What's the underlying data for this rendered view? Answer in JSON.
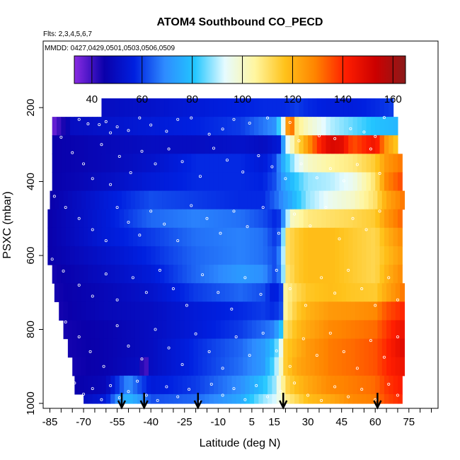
{
  "chart_data": {
    "type": "heatmap",
    "title": "ATOM4 Southbound CO_PECD",
    "flights_note": "Flts: 2,3,4,5,6,7",
    "dates_note": "MMDD: 0427,0429,0501,0503,0506,0509",
    "xlabel": "Latitude (deg N)",
    "ylabel": "PSXC (mbar)",
    "xlim": [
      -88,
      88
    ],
    "ylim": [
      1000,
      20
    ],
    "y_reversed": true,
    "x_ticks": [
      -85,
      -70,
      -55,
      -40,
      -25,
      -10,
      5,
      15,
      30,
      45,
      60,
      75
    ],
    "x_tick_labels": [
      "-85",
      "-70",
      "-55",
      "-40",
      "-25",
      "-10",
      "5",
      "15",
      "30",
      "45",
      "60",
      "75"
    ],
    "x_minor_step": 5,
    "y_ticks": [
      200,
      400,
      600,
      800,
      1000
    ],
    "y_tick_labels": [
      "200",
      "400",
      "600",
      "800",
      "1000"
    ],
    "colorbar": {
      "min": 33,
      "max": 165,
      "ticks": [
        40,
        60,
        80,
        100,
        120,
        140,
        160
      ],
      "tick_labels": [
        "40",
        "60",
        "80",
        "100",
        "120",
        "140",
        "160"
      ],
      "lines": [
        40,
        60,
        80,
        100,
        120,
        140,
        160
      ],
      "colors": [
        "#8a2be2",
        "#0a00aa",
        "#0020e0",
        "#2e8bff",
        "#22c6ff",
        "#e6fbff",
        "#fff6a0",
        "#ffc21a",
        "#ff8400",
        "#ff1e00",
        "#cc0000",
        "#8b1a1a"
      ]
    },
    "arrows_latitude": [
      -53,
      -43,
      -19,
      19,
      61
    ],
    "levels": [
      {
        "p": 200,
        "xmin": -62,
        "xmax": 67,
        "lat": [
          -60,
          -40,
          -20,
          0,
          10,
          20,
          25,
          30,
          40,
          50,
          60,
          67
        ],
        "co": [
          50,
          52,
          55,
          57,
          58,
          58,
          60,
          58,
          56,
          56,
          58,
          60
        ]
      },
      {
        "p": 250,
        "xmin": -84,
        "xmax": 70,
        "lat": [
          -84,
          -80,
          -75,
          -60,
          -40,
          -20,
          0,
          15,
          20,
          22,
          24,
          30,
          40,
          50,
          60,
          70
        ],
        "co": [
          35,
          42,
          50,
          52,
          55,
          57,
          60,
          70,
          100,
          150,
          110,
          100,
          90,
          85,
          80,
          78
        ]
      },
      {
        "p": 300,
        "xmin": -84,
        "xmax": 70,
        "lat": [
          -84,
          -60,
          -40,
          -20,
          0,
          10,
          18,
          20,
          25,
          30,
          35,
          40,
          45,
          50,
          55,
          60,
          65,
          70
        ],
        "co": [
          45,
          48,
          50,
          50,
          52,
          50,
          55,
          90,
          110,
          125,
          140,
          150,
          148,
          135,
          140,
          145,
          125,
          115
        ]
      },
      {
        "p": 350,
        "xmin": -84,
        "xmax": 71,
        "lat": [
          -84,
          -60,
          -40,
          -20,
          0,
          10,
          15,
          20,
          25,
          30,
          40,
          50,
          60,
          65,
          71
        ],
        "co": [
          45,
          48,
          52,
          58,
          58,
          55,
          60,
          80,
          92,
          100,
          105,
          108,
          115,
          125,
          130
        ]
      },
      {
        "p": 400,
        "xmin": -84,
        "xmax": 71,
        "lat": [
          -84,
          -60,
          -40,
          -20,
          0,
          10,
          15,
          20,
          25,
          30,
          40,
          50,
          60,
          65,
          71
        ],
        "co": [
          45,
          50,
          55,
          58,
          58,
          57,
          62,
          75,
          82,
          88,
          90,
          95,
          110,
          128,
          135
        ]
      },
      {
        "p": 450,
        "xmin": -85,
        "xmax": 72,
        "lat": [
          -85,
          -60,
          -40,
          -20,
          0,
          10,
          15,
          20,
          25,
          30,
          40,
          50,
          60,
          65,
          72
        ],
        "co": [
          45,
          55,
          62,
          60,
          58,
          58,
          64,
          72,
          80,
          88,
          95,
          100,
          110,
          122,
          130
        ]
      },
      {
        "p": 500,
        "xmin": -86,
        "xmax": 72,
        "lat": [
          -86,
          -60,
          -40,
          -20,
          0,
          10,
          15,
          18,
          22,
          30,
          40,
          50,
          60,
          65,
          72
        ],
        "co": [
          45,
          55,
          65,
          68,
          66,
          62,
          58,
          60,
          100,
          108,
          110,
          112,
          115,
          125,
          133
        ]
      },
      {
        "p": 550,
        "xmin": -86,
        "xmax": 72,
        "lat": [
          -86,
          -60,
          -40,
          -20,
          0,
          10,
          15,
          18,
          20,
          25,
          30,
          40,
          50,
          60,
          65,
          72
        ],
        "co": [
          45,
          55,
          60,
          66,
          68,
          66,
          60,
          64,
          110,
          115,
          118,
          118,
          115,
          112,
          120,
          128
        ]
      },
      {
        "p": 600,
        "xmin": -86,
        "xmax": 72,
        "lat": [
          -86,
          -60,
          -40,
          -20,
          0,
          10,
          15,
          18,
          20,
          25,
          30,
          40,
          50,
          60,
          65,
          72
        ],
        "co": [
          45,
          52,
          58,
          65,
          68,
          66,
          62,
          70,
          110,
          115,
          118,
          118,
          115,
          112,
          118,
          125
        ]
      },
      {
        "p": 650,
        "xmin": -84,
        "xmax": 72,
        "lat": [
          -84,
          -60,
          -40,
          -20,
          0,
          10,
          15,
          18,
          20,
          25,
          30,
          40,
          50,
          60,
          65,
          72
        ],
        "co": [
          44,
          50,
          55,
          65,
          72,
          70,
          62,
          68,
          108,
          115,
          118,
          118,
          115,
          112,
          120,
          128
        ]
      },
      {
        "p": 700,
        "xmin": -83,
        "xmax": 72,
        "lat": [
          -83,
          -60,
          -40,
          -20,
          0,
          10,
          15,
          18,
          20,
          25,
          30,
          40,
          50,
          60,
          65,
          72
        ],
        "co": [
          44,
          48,
          52,
          60,
          65,
          62,
          55,
          60,
          105,
          112,
          116,
          118,
          116,
          115,
          122,
          130
        ]
      },
      {
        "p": 750,
        "xmin": -81,
        "xmax": 72,
        "lat": [
          -81,
          -60,
          -40,
          -20,
          0,
          10,
          15,
          18,
          20,
          25,
          30,
          40,
          50,
          60,
          65,
          72
        ],
        "co": [
          44,
          48,
          50,
          55,
          58,
          60,
          58,
          62,
          105,
          115,
          120,
          125,
          126,
          128,
          135,
          140
        ]
      },
      {
        "p": 800,
        "xmin": -79,
        "xmax": 72,
        "lat": [
          -79,
          -60,
          -40,
          -20,
          0,
          10,
          15,
          18,
          20,
          25,
          30,
          40,
          50,
          60,
          65,
          72
        ],
        "co": [
          44,
          46,
          50,
          55,
          60,
          65,
          68,
          80,
          110,
          118,
          122,
          128,
          130,
          132,
          138,
          145
        ]
      },
      {
        "p": 850,
        "xmin": -77,
        "xmax": 72,
        "lat": [
          -77,
          -60,
          -40,
          -20,
          0,
          10,
          15,
          18,
          20,
          25,
          30,
          40,
          50,
          60,
          65,
          72
        ],
        "co": [
          44,
          46,
          50,
          58,
          65,
          72,
          80,
          95,
          115,
          120,
          125,
          130,
          132,
          135,
          140,
          148
        ]
      },
      {
        "p": 900,
        "xmin": -75,
        "xmax": 72,
        "lat": [
          -75,
          -60,
          -45,
          -43,
          -40,
          -20,
          0,
          10,
          15,
          18,
          20,
          25,
          30,
          40,
          50,
          60,
          65,
          72
        ],
        "co": [
          44,
          46,
          50,
          35,
          50,
          58,
          66,
          72,
          85,
          100,
          115,
          122,
          125,
          130,
          132,
          135,
          140,
          145
        ]
      },
      {
        "p": 950,
        "xmin": -74,
        "xmax": 72,
        "lat": [
          -74,
          -60,
          -50,
          -45,
          -40,
          -20,
          0,
          10,
          15,
          18,
          20,
          25,
          30,
          40,
          50,
          60,
          65,
          72
        ],
        "co": [
          45,
          48,
          70,
          62,
          55,
          60,
          70,
          80,
          88,
          100,
          112,
          118,
          122,
          128,
          130,
          132,
          138,
          142
        ]
      },
      {
        "p": 1000,
        "xmin": -70,
        "xmax": 72,
        "lat": [
          -70,
          -60,
          -55,
          -50,
          -45,
          -40,
          -20,
          0,
          10,
          15,
          18,
          20,
          25,
          30,
          40,
          50,
          60,
          65,
          72
        ],
        "co": [
          50,
          55,
          70,
          78,
          72,
          62,
          65,
          75,
          88,
          92,
          98,
          106,
          112,
          118,
          122,
          128,
          130,
          136,
          140
        ]
      }
    ],
    "points": [
      [
        -77,
        220
      ],
      [
        -72,
        232
      ],
      [
        -68,
        244
      ],
      [
        -63,
        246
      ],
      [
        -60,
        238
      ],
      [
        -58,
        268
      ],
      [
        -55,
        252
      ],
      [
        -50,
        262
      ],
      [
        -45,
        228
      ],
      [
        -40,
        247
      ],
      [
        -33,
        264
      ],
      [
        -28,
        232
      ],
      [
        -22,
        228
      ],
      [
        -14,
        272
      ],
      [
        -8,
        258
      ],
      [
        -3,
        232
      ],
      [
        4,
        242
      ],
      [
        12,
        228
      ],
      [
        22,
        240
      ],
      [
        26,
        290
      ],
      [
        35,
        276
      ],
      [
        42,
        284
      ],
      [
        49,
        257
      ],
      [
        55,
        266
      ],
      [
        60,
        278
      ],
      [
        64,
        227
      ],
      [
        -80,
        280
      ],
      [
        -75,
        322
      ],
      [
        -70,
        352
      ],
      [
        -66,
        392
      ],
      [
        -62,
        300
      ],
      [
        -58,
        408
      ],
      [
        -54,
        332
      ],
      [
        -49,
        376
      ],
      [
        -44,
        318
      ],
      [
        -38,
        352
      ],
      [
        -32,
        312
      ],
      [
        -26,
        346
      ],
      [
        -18,
        386
      ],
      [
        -12,
        310
      ],
      [
        -6,
        342
      ],
      [
        1,
        374
      ],
      [
        8,
        330
      ],
      [
        14,
        360
      ],
      [
        20,
        392
      ],
      [
        27,
        352
      ],
      [
        34,
        390
      ],
      [
        40,
        365
      ],
      [
        46,
        398
      ],
      [
        52,
        354
      ],
      [
        58,
        312
      ],
      [
        62,
        378
      ],
      [
        -83,
        440
      ],
      [
        -78,
        470
      ],
      [
        -72,
        500
      ],
      [
        -66,
        530
      ],
      [
        -60,
        560
      ],
      [
        -55,
        470
      ],
      [
        -50,
        510
      ],
      [
        -45,
        545
      ],
      [
        -40,
        480
      ],
      [
        -34,
        515
      ],
      [
        -28,
        560
      ],
      [
        -22,
        465
      ],
      [
        -15,
        500
      ],
      [
        -9,
        540
      ],
      [
        -3,
        480
      ],
      [
        3,
        522
      ],
      [
        10,
        470
      ],
      [
        17,
        540
      ],
      [
        24,
        488
      ],
      [
        31,
        520
      ],
      [
        38,
        470
      ],
      [
        44,
        555
      ],
      [
        50,
        500
      ],
      [
        56,
        530
      ],
      [
        62,
        480
      ],
      [
        -84,
        610
      ],
      [
        -79,
        642
      ],
      [
        -72,
        680
      ],
      [
        -66,
        710
      ],
      [
        -60,
        650
      ],
      [
        -55,
        720
      ],
      [
        -48,
        660
      ],
      [
        -42,
        700
      ],
      [
        -36,
        640
      ],
      [
        -30,
        690
      ],
      [
        -24,
        735
      ],
      [
        -17,
        652
      ],
      [
        -10,
        700
      ],
      [
        -4,
        745
      ],
      [
        2,
        660
      ],
      [
        9,
        705
      ],
      [
        16,
        640
      ],
      [
        22,
        690
      ],
      [
        29,
        735
      ],
      [
        36,
        660
      ],
      [
        42,
        702
      ],
      [
        48,
        640
      ],
      [
        54,
        690
      ],
      [
        60,
        735
      ],
      [
        66,
        660
      ],
      [
        70,
        720
      ],
      [
        -78,
        780
      ],
      [
        -72,
        820
      ],
      [
        -67,
        860
      ],
      [
        -61,
        900
      ],
      [
        -55,
        790
      ],
      [
        -50,
        845
      ],
      [
        -44,
        880
      ],
      [
        -38,
        800
      ],
      [
        -32,
        850
      ],
      [
        -26,
        895
      ],
      [
        -20,
        812
      ],
      [
        -14,
        860
      ],
      [
        -8,
        905
      ],
      [
        -2,
        820
      ],
      [
        4,
        870
      ],
      [
        10,
        810
      ],
      [
        16,
        858
      ],
      [
        22,
        900
      ],
      [
        28,
        825
      ],
      [
        34,
        870
      ],
      [
        40,
        810
      ],
      [
        46,
        860
      ],
      [
        52,
        905
      ],
      [
        58,
        830
      ],
      [
        64,
        875
      ],
      [
        70,
        820
      ],
      [
        -74,
        945
      ],
      [
        -70,
        975
      ],
      [
        -66,
        960
      ],
      [
        -62,
        990
      ],
      [
        -58,
        952
      ],
      [
        -54,
        985
      ],
      [
        -50,
        968
      ],
      [
        -46,
        940
      ],
      [
        -42,
        978
      ],
      [
        -37,
        992
      ],
      [
        -33,
        955
      ],
      [
        -28,
        982
      ],
      [
        -23,
        962
      ],
      [
        -18,
        995
      ],
      [
        -13,
        948
      ],
      [
        -8,
        978
      ],
      [
        -3,
        960
      ],
      [
        2,
        990
      ],
      [
        7,
        952
      ],
      [
        12,
        982
      ],
      [
        18,
        968
      ],
      [
        24,
        945
      ],
      [
        30,
        978
      ],
      [
        36,
        992
      ],
      [
        42,
        955
      ],
      [
        48,
        982
      ],
      [
        54,
        962
      ],
      [
        60,
        990
      ],
      [
        66,
        948
      ],
      [
        70,
        978
      ]
    ]
  }
}
